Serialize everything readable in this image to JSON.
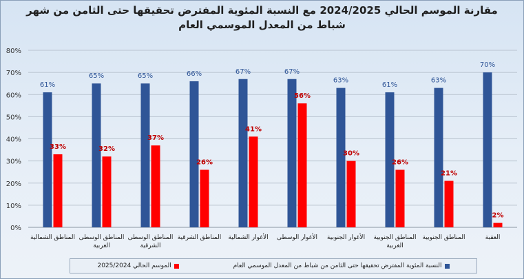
{
  "chart_data": {
    "type": "bar",
    "title_lines": [
      "مقارنة الموسم الحالي 2024/2025  مع النسبة المئوية المفترض تحقيقها حتى الثامن من شهر",
      "شباط من المعدل الموسمي العام"
    ],
    "y_ticks": [
      "0%",
      "10%",
      "20%",
      "30%",
      "40%",
      "50%",
      "60%",
      "70%",
      "80%"
    ],
    "ylim": [
      0,
      80
    ],
    "grid": true,
    "legend_position": "bottom",
    "categories": [
      [
        "المناطق الشمالية"
      ],
      [
        "المناطق الوسطى",
        "الغربية"
      ],
      [
        "المناطق الوسطى",
        "الشرقية"
      ],
      [
        "المناطق الشرقية"
      ],
      [
        "الأغوار الشمالية"
      ],
      [
        "الأغوار الوسطى"
      ],
      [
        "الأغوار الجنوبية"
      ],
      [
        "المناطق الجنوبية",
        "الغربية"
      ],
      [
        "المناطق الجنوبية"
      ],
      [
        "العقبة"
      ]
    ],
    "series": [
      {
        "name": "النسبة المئوية المفترض تحقيقها حتى الثامن من شباط من المعدل الموسمي العام",
        "color": "#2f5597",
        "label_color": "#2f5597",
        "values": [
          61,
          65,
          65,
          66,
          67,
          67,
          63,
          61,
          63,
          70
        ],
        "labels": [
          "61%",
          "65%",
          "65%",
          "66%",
          "67%",
          "67%",
          "63%",
          "61%",
          "63%",
          "70%"
        ]
      },
      {
        "name": "الموسم الحالي 2025/2024",
        "color": "#ff0000",
        "label_color": "#c00000",
        "values": [
          33,
          32,
          37,
          26,
          41,
          56,
          30,
          26,
          21,
          2
        ],
        "labels": [
          "33%",
          "32%",
          "37%",
          "26%",
          "41%",
          "56%",
          "30%",
          "26%",
          "21%",
          "2%"
        ]
      }
    ]
  }
}
